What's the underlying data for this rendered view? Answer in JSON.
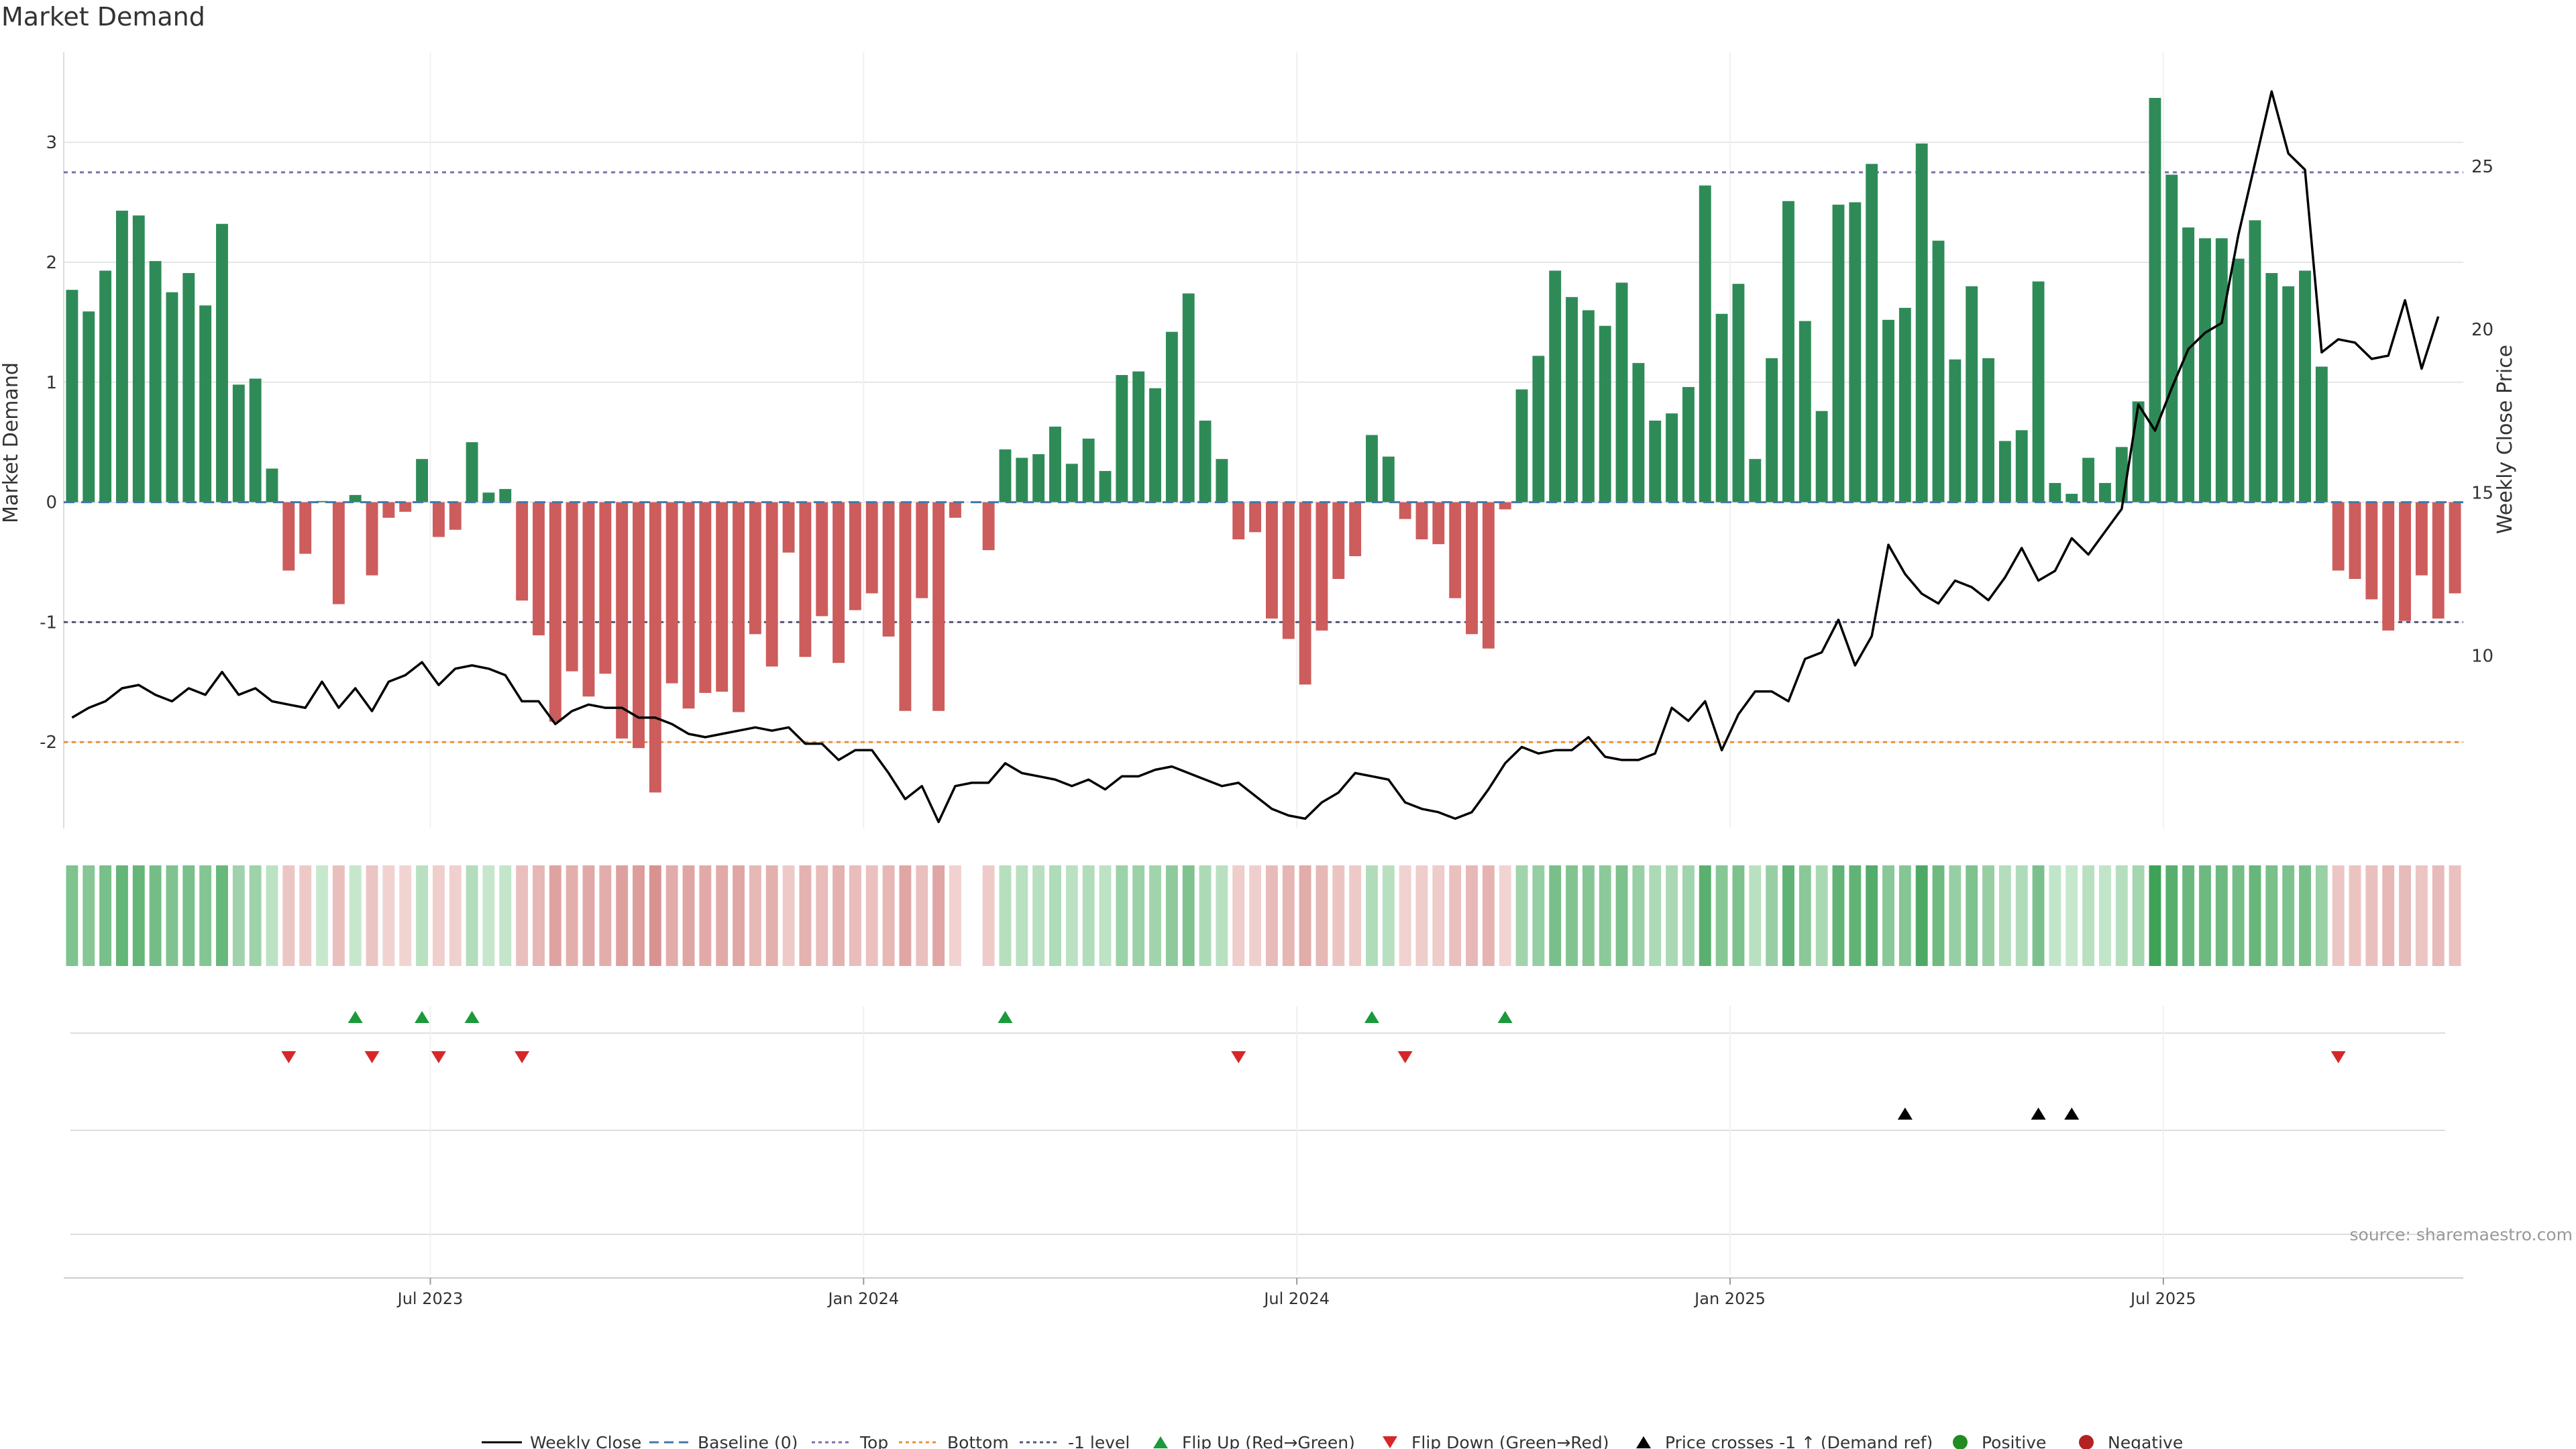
{
  "chart_data": {
    "type": "bar",
    "title": "Market Demand",
    "ylabel": "Market Demand",
    "y2label": "Weekly Close Price",
    "ylim": [
      -2.72,
      3.75
    ],
    "y2lim": [
      4.7,
      28.5
    ],
    "yticks": [
      -2,
      -1,
      0,
      1,
      2,
      3
    ],
    "y2ticks": [
      10,
      15,
      20,
      25
    ],
    "reference_lines": {
      "top": 2.75,
      "bottom": -2.0,
      "minus_one": -1.0,
      "baseline": 0
    },
    "x_tick_labels": [
      {
        "label": "Jul 2023",
        "week": 22
      },
      {
        "label": "Jan 2024",
        "week": 48
      },
      {
        "label": "Jul 2024",
        "week": 74
      },
      {
        "label": "Jan 2025",
        "week": 100
      },
      {
        "label": "Jul 2025",
        "week": 126
      }
    ],
    "demand": [
      1.77,
      1.59,
      1.93,
      2.43,
      2.39,
      2.01,
      1.75,
      1.91,
      1.64,
      2.32,
      0.98,
      1.03,
      0.28,
      -0.57,
      -0.43,
      0.01,
      -0.85,
      0.06,
      -0.61,
      -0.13,
      -0.08,
      0.36,
      -0.29,
      -0.23,
      0.5,
      0.08,
      0.11,
      -0.82,
      -1.11,
      -1.83,
      -1.41,
      -1.62,
      -1.43,
      -1.97,
      -2.05,
      -2.42,
      -1.51,
      -1.72,
      -1.59,
      -1.58,
      -1.75,
      -1.1,
      -1.37,
      -0.42,
      -1.29,
      -0.95,
      -1.34,
      -0.9,
      -0.76,
      -1.12,
      -1.74,
      -0.8,
      -1.74,
      -0.13,
      null,
      -0.4,
      0.44,
      0.37,
      0.4,
      0.63,
      0.32,
      0.53,
      0.26,
      1.06,
      1.09,
      0.95,
      1.42,
      1.74,
      0.68,
      0.36,
      -0.31,
      -0.25,
      -0.97,
      -1.14,
      -1.52,
      -1.07,
      -0.64,
      -0.45,
      0.56,
      0.38,
      -0.14,
      -0.31,
      -0.35,
      -0.8,
      -1.1,
      -1.22,
      -0.06,
      0.94,
      1.22,
      1.93,
      1.71,
      1.6,
      1.47,
      1.83,
      1.16,
      0.68,
      0.74,
      0.96,
      2.64,
      1.57,
      1.82,
      0.36,
      1.2,
      2.51,
      1.51,
      0.76,
      2.48,
      2.5,
      2.82,
      1.52,
      1.62,
      2.99,
      2.18,
      1.19,
      1.8,
      1.2,
      0.51,
      0.6,
      1.84,
      0.16,
      0.07,
      0.37,
      0.16,
      0.46,
      0.84,
      3.37,
      2.73,
      2.29,
      2.2,
      2.2,
      2.03,
      2.35,
      1.91,
      1.8,
      1.93,
      1.13,
      -0.57,
      -0.64,
      -0.81,
      -1.07,
      -0.99,
      -0.61,
      -0.97,
      -0.76
    ],
    "weekly_close": [
      8.1,
      8.4,
      8.6,
      9.0,
      9.1,
      8.8,
      8.6,
      9.0,
      8.8,
      9.5,
      8.8,
      9.0,
      8.6,
      8.5,
      8.4,
      9.2,
      8.4,
      9.0,
      8.3,
      9.2,
      9.4,
      9.8,
      9.1,
      9.6,
      9.7,
      9.6,
      9.4,
      8.6,
      8.6,
      7.9,
      8.3,
      8.5,
      8.4,
      8.4,
      8.1,
      8.1,
      7.9,
      7.6,
      7.5,
      7.6,
      7.7,
      7.8,
      7.7,
      7.8,
      7.3,
      7.3,
      6.8,
      7.1,
      7.1,
      6.4,
      5.6,
      6.0,
      4.9,
      6.0,
      6.1,
      6.1,
      6.7,
      6.4,
      6.3,
      6.2,
      6.0,
      6.2,
      5.9,
      6.3,
      6.3,
      6.5,
      6.6,
      6.4,
      6.2,
      6.0,
      6.1,
      5.7,
      5.3,
      5.1,
      5.0,
      5.5,
      5.8,
      6.4,
      6.3,
      6.2,
      5.5,
      5.3,
      5.2,
      5.0,
      5.2,
      5.9,
      6.7,
      7.2,
      7.0,
      7.1,
      7.1,
      7.5,
      6.9,
      6.8,
      6.8,
      7.0,
      8.4,
      8.0,
      8.6,
      7.1,
      8.2,
      8.9,
      8.9,
      8.6,
      9.9,
      10.1,
      11.1,
      9.7,
      10.6,
      13.4,
      12.5,
      11.9,
      11.6,
      12.3,
      12.1,
      11.7,
      12.4,
      13.3,
      12.3,
      12.6,
      13.6,
      13.1,
      13.8,
      14.5,
      17.7,
      16.9,
      18.2,
      19.4,
      19.9,
      20.2,
      22.9,
      25.1,
      27.3,
      25.4,
      24.9,
      19.3,
      19.7,
      19.6,
      19.1,
      19.2,
      20.9,
      18.8,
      20.4
    ],
    "flip_up_weeks": [
      17,
      21,
      24,
      56,
      78,
      86
    ],
    "flip_down_weeks": [
      13,
      18,
      22,
      27,
      70,
      80,
      136
    ],
    "price_cross_weeks": [
      110,
      118,
      120
    ],
    "legend": [
      "Weekly Close",
      "Baseline (0)",
      "Top",
      "Bottom",
      "-1 level",
      "Flip Up (Red→Green)",
      "Flip Down (Green→Red)",
      "Price crosses -1 ↑ (Demand ref)",
      "Positive",
      "Negative"
    ],
    "colors": {
      "positive": "#2e8b57",
      "negative": "#cd5c5c",
      "price": "#000000",
      "baseline": "#4477aa",
      "top": "#7b6fb0",
      "bottom": "#e69138",
      "minus_one": "#555577",
      "flip_up": "#1a9a3a",
      "flip_down": "#d62728",
      "legend_positive": "#228b22",
      "legend_negative": "#b22222",
      "grid": "#e6e6e6"
    }
  },
  "source": "source: sharemaestro.com"
}
